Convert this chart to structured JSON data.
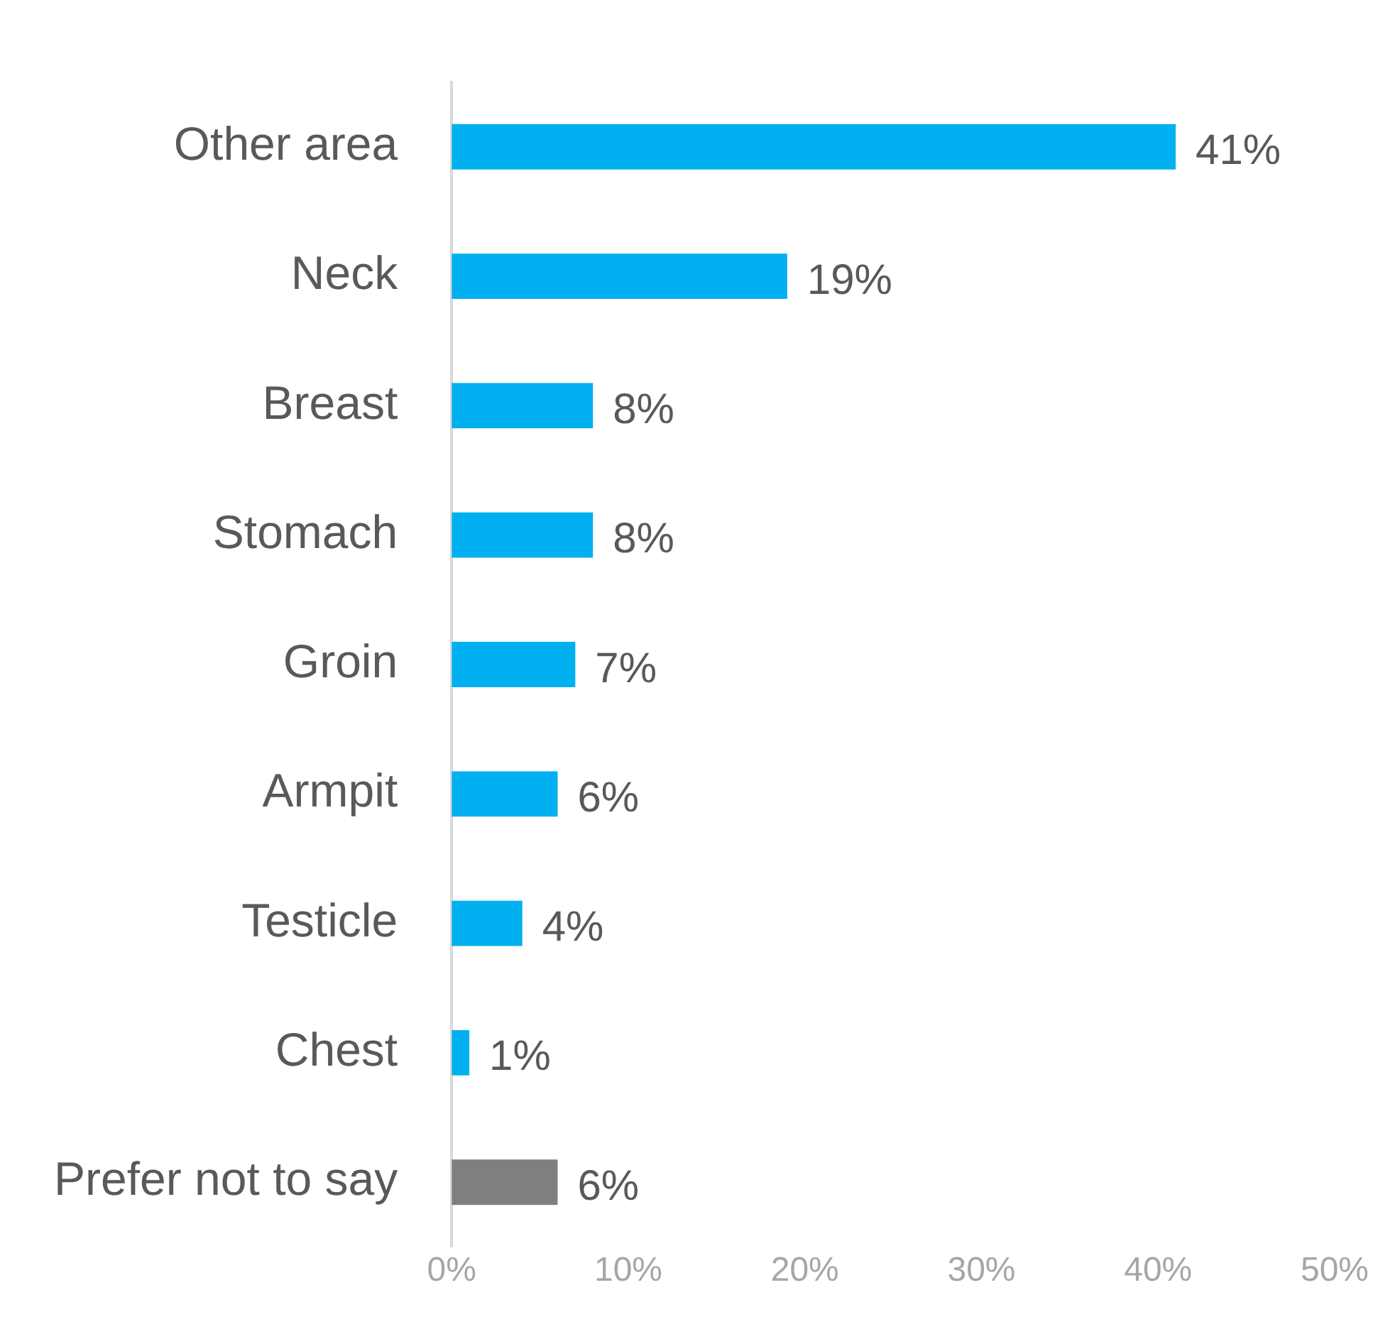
{
  "chart_data": {
    "type": "bar",
    "orientation": "horizontal",
    "categories": [
      "Other area",
      "Neck",
      "Breast",
      "Stomach",
      "Groin",
      "Armpit",
      "Testicle",
      "Chest",
      "Prefer not to say"
    ],
    "values": [
      41,
      19,
      8,
      8,
      7,
      6,
      4,
      1,
      6
    ],
    "colors": [
      "#00b0f0",
      "#00b0f0",
      "#00b0f0",
      "#00b0f0",
      "#00b0f0",
      "#00b0f0",
      "#00b0f0",
      "#00b0f0",
      "#7f7f7f"
    ],
    "value_labels": [
      "41%",
      "19%",
      "8%",
      "8%",
      "7%",
      "6%",
      "4%",
      "1%",
      "6%"
    ],
    "xlim": [
      0,
      50
    ],
    "xticks": [
      {
        "value": 0,
        "label": "0%"
      },
      {
        "value": 10,
        "label": "10%"
      },
      {
        "value": 20,
        "label": "20%"
      },
      {
        "value": 30,
        "label": "30%"
      },
      {
        "value": 40,
        "label": "40%"
      },
      {
        "value": 50,
        "label": "50%"
      }
    ],
    "grid": false,
    "legend": false
  }
}
